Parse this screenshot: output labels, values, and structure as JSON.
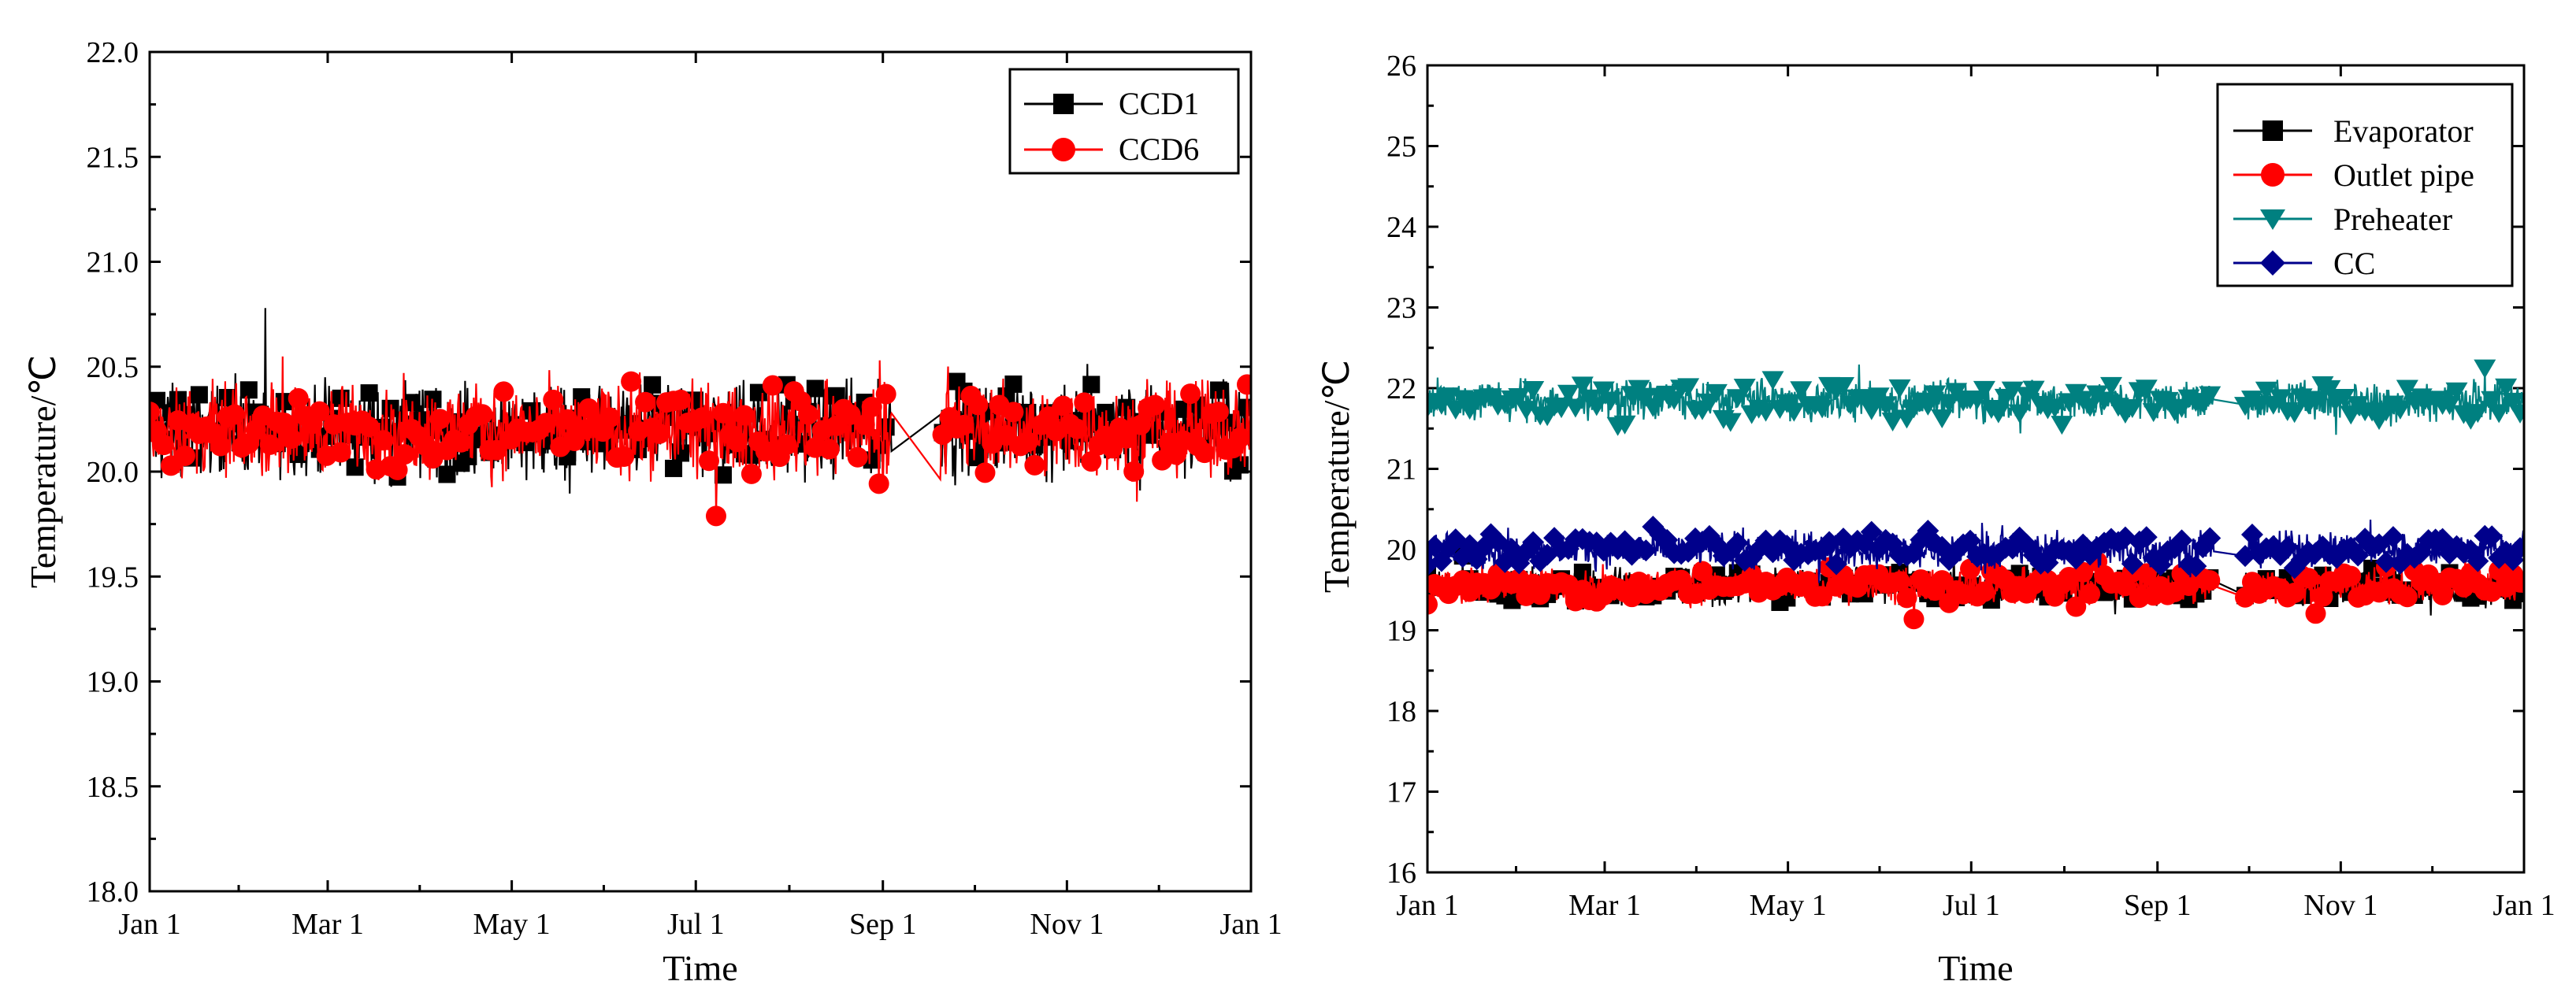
{
  "chart_data": [
    {
      "type": "line",
      "title": "",
      "xlabel": "Time",
      "ylabel": "Temperature/℃",
      "ylim": [
        18.0,
        22.0
      ],
      "yticks": [
        "18.0",
        "18.5",
        "19.0",
        "19.5",
        "20.0",
        "20.5",
        "21.0",
        "21.5",
        "22.0"
      ],
      "xlim": [
        0,
        365
      ],
      "x_ticks": [
        {
          "day": 0,
          "label": "Jan 1"
        },
        {
          "day": 59,
          "label": "Mar 1"
        },
        {
          "day": 120,
          "label": "May 1"
        },
        {
          "day": 181,
          "label": "Jul 1"
        },
        {
          "day": 243,
          "label": "Sep 1"
        },
        {
          "day": 304,
          "label": "Nov 1"
        },
        {
          "day": 365,
          "label": "Jan 1"
        }
      ],
      "legend_position": "top-right",
      "series": [
        {
          "name": "CCD1",
          "color": "#000000",
          "marker": "square",
          "mean": 20.2,
          "spread": 0.3,
          "gap": [
            246,
            262
          ]
        },
        {
          "name": "CCD6",
          "color": "#ff0000",
          "marker": "circle",
          "mean": 20.2,
          "spread": 0.3,
          "gap": [
            246,
            262
          ]
        }
      ]
    },
    {
      "type": "line",
      "title": "",
      "xlabel": "Time",
      "ylabel": "Temperature/℃",
      "ylim": [
        16,
        26
      ],
      "yticks": [
        "16",
        "17",
        "18",
        "19",
        "20",
        "21",
        "22",
        "23",
        "24",
        "25",
        "26"
      ],
      "xlim": [
        0,
        365
      ],
      "x_ticks": [
        {
          "day": 0,
          "label": "Jan 1"
        },
        {
          "day": 59,
          "label": "Mar 1"
        },
        {
          "day": 120,
          "label": "May 1"
        },
        {
          "day": 181,
          "label": "Jul 1"
        },
        {
          "day": 243,
          "label": "Sep 1"
        },
        {
          "day": 304,
          "label": "Nov 1"
        },
        {
          "day": 365,
          "label": "Jan 1"
        }
      ],
      "legend_position": "top-right",
      "series": [
        {
          "name": "Evaporator",
          "color": "#000000",
          "marker": "square",
          "mean": 19.55,
          "spread": 0.3,
          "gap": [
            262,
            272
          ]
        },
        {
          "name": "Outlet pipe",
          "color": "#ff0000",
          "marker": "circle",
          "mean": 19.55,
          "spread": 0.3,
          "gap": [
            262,
            272
          ]
        },
        {
          "name": "Preheater",
          "color": "#008080",
          "marker": "triangle-down",
          "mean": 21.85,
          "spread": 0.35,
          "gap": [
            262,
            272
          ]
        },
        {
          "name": "CC",
          "color": "#00008b",
          "marker": "diamond",
          "mean": 20.0,
          "spread": 0.3,
          "gap": [
            262,
            272
          ]
        }
      ]
    }
  ]
}
